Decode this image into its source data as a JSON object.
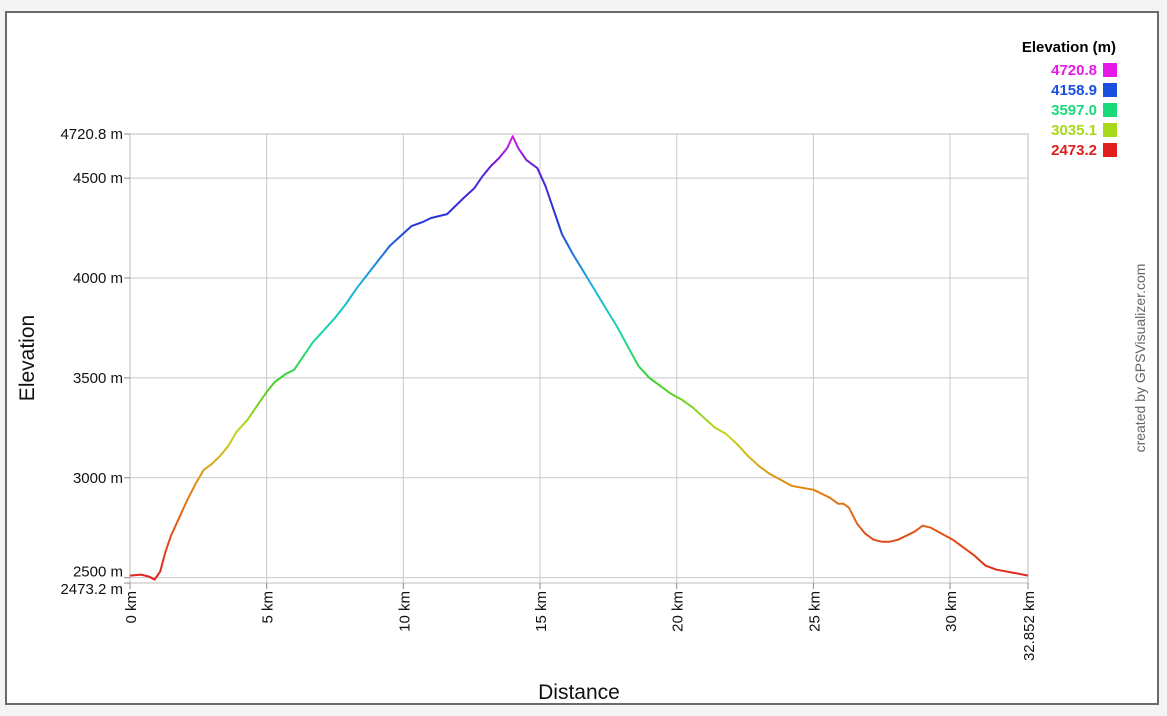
{
  "chart_data": {
    "type": "line",
    "xlabel": "Distance",
    "ylabel": "Elevation",
    "xlim": [
      0,
      32.852
    ],
    "ylim": [
      2473.2,
      4720.8
    ],
    "grid": true,
    "x_ticks": [
      {
        "value": 0,
        "label": "0 km"
      },
      {
        "value": 5,
        "label": "5 km"
      },
      {
        "value": 10,
        "label": "10 km"
      },
      {
        "value": 15,
        "label": "15 km"
      },
      {
        "value": 20,
        "label": "20 km"
      },
      {
        "value": 25,
        "label": "25 km"
      },
      {
        "value": 30,
        "label": "30 km"
      },
      {
        "value": 32.852,
        "label": "32.852 km"
      }
    ],
    "y_ticks": [
      {
        "value": 2473.2,
        "label": "2473.2 m"
      },
      {
        "value": 2500,
        "label": "2500 m"
      },
      {
        "value": 3000,
        "label": "3000 m"
      },
      {
        "value": 3500,
        "label": "3500 m"
      },
      {
        "value": 4000,
        "label": "4000 m"
      },
      {
        "value": 4500,
        "label": "4500 m"
      },
      {
        "value": 4720.8,
        "label": "4720.8 m"
      }
    ],
    "legend": {
      "title": "Elevation (m)",
      "placement": "top-right",
      "entries": [
        {
          "label": "4720.8",
          "color": "#e619e6"
        },
        {
          "label": "4158.9",
          "color": "#1a4fe0"
        },
        {
          "label": "3597.0",
          "color": "#19d97a"
        },
        {
          "label": "3035.1",
          "color": "#a8d81a"
        },
        {
          "label": "2473.2",
          "color": "#e01e1e"
        }
      ]
    },
    "series": [
      {
        "x": [
          0,
          0.4,
          0.7,
          0.9,
          1.1,
          1.3,
          1.5,
          1.8,
          2.1,
          2.4,
          2.7,
          3.0,
          3.3,
          3.6,
          3.9,
          4.3,
          4.6,
          5.0,
          5.3,
          5.7,
          6.0,
          6.3,
          6.7,
          7.1,
          7.5,
          7.9,
          8.3,
          8.7,
          9.1,
          9.5,
          9.9,
          10.3,
          10.7,
          11.0,
          11.3,
          11.6,
          11.9,
          12.2,
          12.6,
          12.9,
          13.2,
          13.5,
          13.8,
          14.0,
          14.2,
          14.5,
          14.9,
          15.2,
          15.5,
          15.8,
          16.2,
          16.6,
          17.0,
          17.4,
          17.8,
          18.2,
          18.6,
          19.0,
          19.4,
          19.8,
          20.2,
          20.6,
          21.0,
          21.4,
          21.8,
          22.2,
          22.6,
          23.0,
          23.4,
          23.8,
          24.2,
          24.6,
          25.0,
          25.3,
          25.6,
          25.9,
          26.1,
          26.3,
          26.6,
          26.9,
          27.2,
          27.5,
          27.8,
          28.1,
          28.4,
          28.7,
          29.0,
          29.3,
          29.7,
          30.1,
          30.5,
          30.9,
          31.3,
          31.7,
          32.1,
          32.5,
          32.852
        ],
        "y": [
          2510,
          2515,
          2505,
          2490,
          2530,
          2630,
          2710,
          2800,
          2890,
          2970,
          3040,
          3070,
          3110,
          3160,
          3230,
          3290,
          3350,
          3430,
          3480,
          3520,
          3540,
          3600,
          3680,
          3740,
          3800,
          3870,
          3950,
          4020,
          4090,
          4160,
          4210,
          4260,
          4280,
          4300,
          4310,
          4320,
          4360,
          4400,
          4450,
          4510,
          4560,
          4600,
          4650,
          4710,
          4650,
          4590,
          4550,
          4460,
          4340,
          4220,
          4120,
          4030,
          3940,
          3850,
          3760,
          3660,
          3560,
          3500,
          3460,
          3420,
          3390,
          3350,
          3300,
          3250,
          3220,
          3170,
          3110,
          3060,
          3020,
          2990,
          2960,
          2950,
          2940,
          2920,
          2900,
          2870,
          2870,
          2850,
          2770,
          2720,
          2690,
          2680,
          2680,
          2690,
          2710,
          2730,
          2760,
          2750,
          2720,
          2690,
          2650,
          2610,
          2560,
          2540,
          2530,
          2520,
          2510
        ]
      }
    ]
  },
  "credit": "created by GPSVisualizer.com"
}
